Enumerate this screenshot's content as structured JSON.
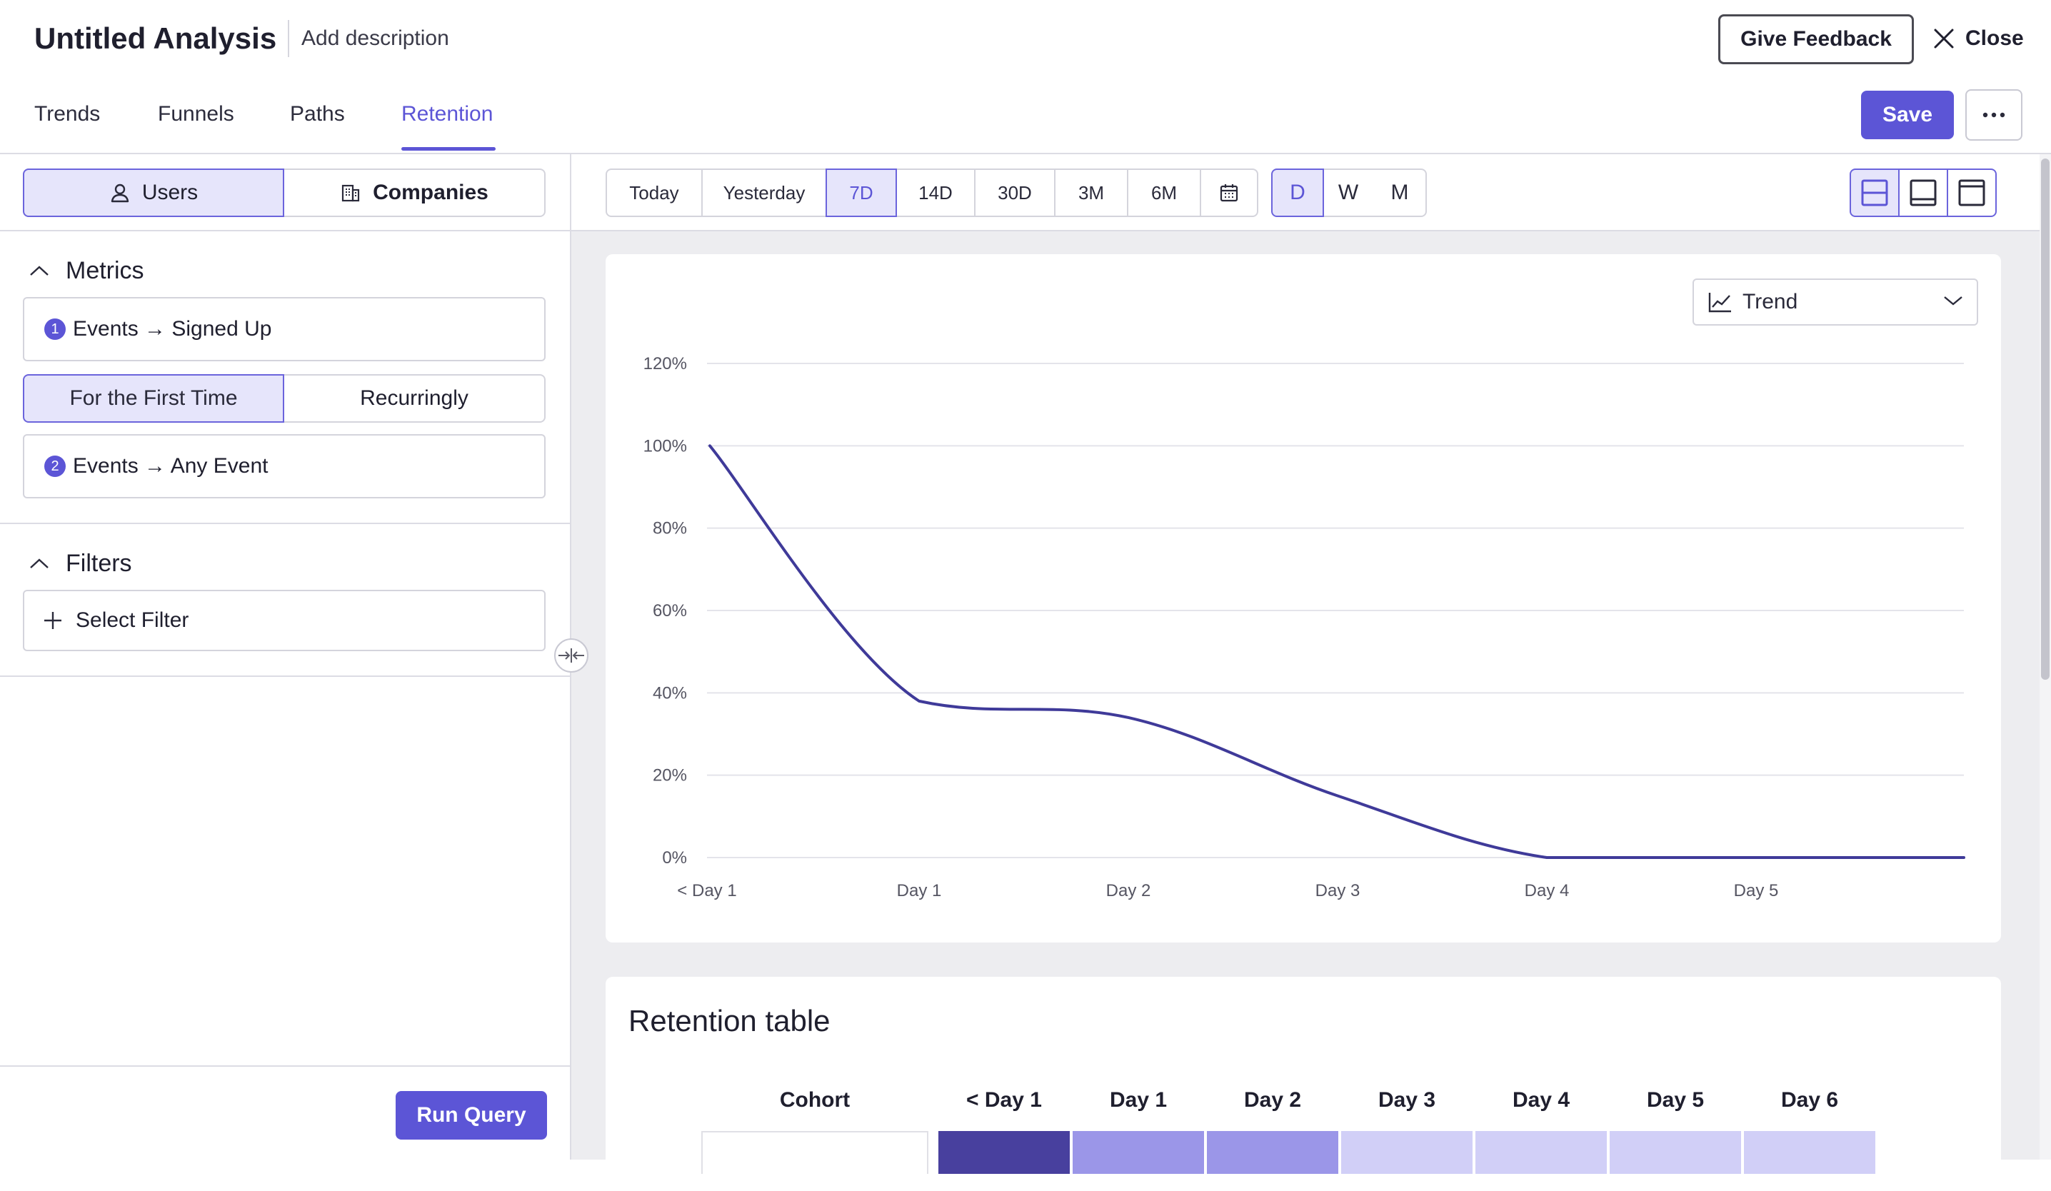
{
  "header": {
    "title": "Untitled Analysis",
    "description": "Add description",
    "feedback_label": "Give Feedback",
    "close_label": "Close",
    "save_label": "Save"
  },
  "tabs": [
    {
      "label": "Trends"
    },
    {
      "label": "Funnels"
    },
    {
      "label": "Paths"
    },
    {
      "label": "Retention",
      "active": true
    }
  ],
  "sidebar": {
    "entity_toggle": {
      "users": "Users",
      "companies": "Companies",
      "selected": "Users"
    },
    "metrics": {
      "title": "Metrics",
      "items": [
        {
          "index": "1",
          "label": "Events → Signed Up"
        },
        {
          "index": "2",
          "label": "Events → Any Event"
        }
      ],
      "frequency": {
        "first": "For the First Time",
        "recurring": "Recurringly",
        "selected": "For the First Time"
      }
    },
    "filters": {
      "title": "Filters",
      "add_label": "Select Filter"
    },
    "run_label": "Run Query"
  },
  "toolbar": {
    "date_ranges": [
      "Today",
      "Yesterday",
      "7D",
      "14D",
      "30D",
      "3M",
      "6M"
    ],
    "selected_range": "7D",
    "granularity": [
      "D",
      "W",
      "M"
    ],
    "selected_granularity": "D"
  },
  "chart": {
    "view_select": "Trend"
  },
  "chart_data": {
    "type": "line",
    "x": [
      "< Day 1",
      "Day 1",
      "Day 2",
      "Day 3",
      "Day 4",
      "Day 5",
      "Day 6"
    ],
    "x_tick_labels": [
      "< Day 1",
      "Day 1",
      "Day 2",
      "Day 3",
      "Day 4",
      "Day 5"
    ],
    "y_tick_labels": [
      "0%",
      "20%",
      "40%",
      "60%",
      "80%",
      "100%",
      "120%"
    ],
    "ylim": [
      0,
      120
    ],
    "series": [
      {
        "values": [
          100,
          38,
          34,
          15,
          0,
          0,
          0
        ],
        "color": "#3f3a99"
      }
    ],
    "grid": true,
    "title": "",
    "xlabel": "",
    "ylabel": ""
  },
  "table": {
    "title": "Retention table",
    "headers": [
      "Cohort",
      "< Day 1",
      "Day 1",
      "Day 2",
      "Day 3",
      "Day 4",
      "Day 5",
      "Day 6"
    ],
    "cell_colors": [
      "#ffffff",
      "#48409e",
      "#9b96e8",
      "#9b96e8",
      "#d1cff7",
      "#d1cff7",
      "#d1cff7",
      "#d1cff7"
    ]
  },
  "colors": {
    "accent": "#5c55d6",
    "accent_light": "#e6e5fb",
    "line": "#3f3a99"
  }
}
